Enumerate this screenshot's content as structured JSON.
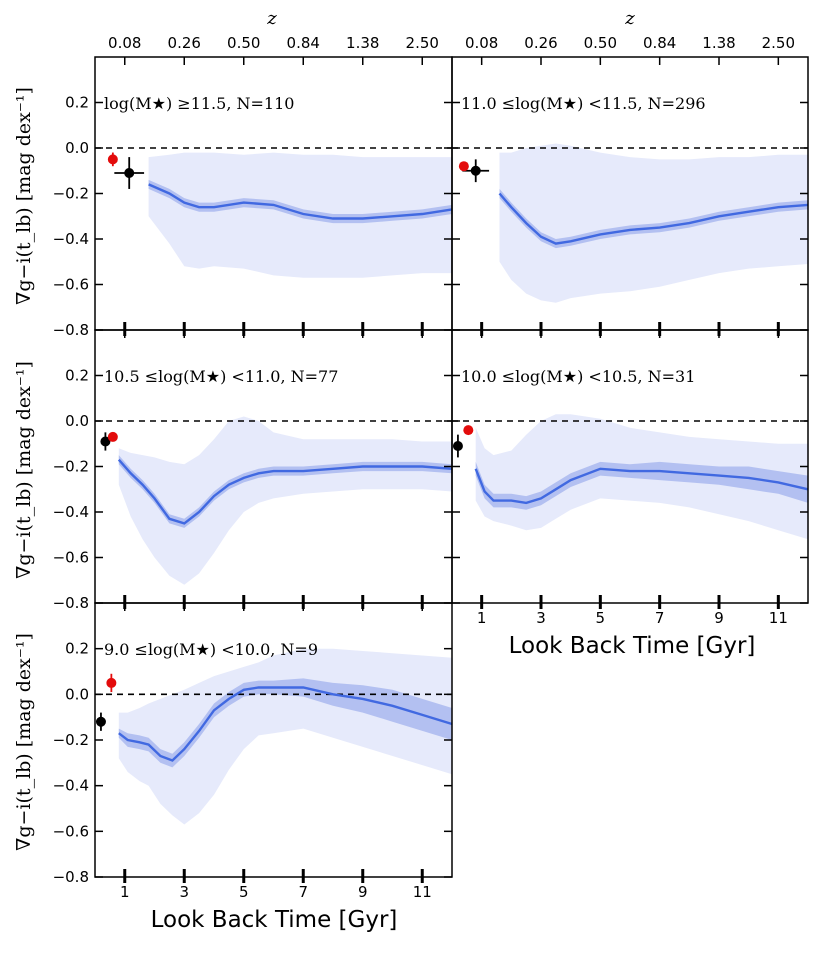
{
  "chart_data": {
    "type": "line",
    "title": "",
    "top_axis_label": "z",
    "top_tick_labels": [
      "0.08",
      "0.26",
      "0.50",
      "0.84",
      "1.38",
      "2.50"
    ],
    "top_tick_at_gyr": [
      1.0,
      3.0,
      5.0,
      7.0,
      9.0,
      11.0
    ],
    "xlabel": "Look Back Time [Gyr]",
    "ylabel": "∇g−i(t_lb) [mag dex⁻¹]",
    "x_ticks": [
      1,
      3,
      5,
      7,
      9,
      11
    ],
    "y_ticks": [
      0.2,
      0.0,
      -0.2,
      -0.4,
      -0.6,
      -0.8
    ],
    "y_tick_labels": [
      "0.2",
      "0.0",
      "−0.2",
      "−0.4",
      "−0.6",
      "−0.8"
    ],
    "xlim": [
      0,
      12
    ],
    "ylim": [
      -0.8,
      0.4
    ],
    "colors": {
      "line": "#4169e1",
      "inner_band": "#a9b8ee",
      "outer_band": "#e6eafb",
      "black_point": "#000000",
      "red_point": "#e30b0b",
      "zero_line": "#000000"
    },
    "panels": [
      {
        "label": "log(M★) ≥11.5, N=110",
        "x": [
          1.8,
          2.5,
          3.0,
          3.5,
          4.0,
          5.0,
          6.0,
          7.0,
          8.0,
          9.0,
          10.0,
          11.0,
          12.0
        ],
        "median": [
          -0.16,
          -0.2,
          -0.24,
          -0.26,
          -0.26,
          -0.24,
          -0.25,
          -0.29,
          -0.31,
          -0.31,
          -0.3,
          -0.29,
          -0.27
        ],
        "inner_low": [
          -0.18,
          -0.22,
          -0.26,
          -0.28,
          -0.28,
          -0.26,
          -0.27,
          -0.31,
          -0.33,
          -0.33,
          -0.32,
          -0.31,
          -0.29
        ],
        "inner_high": [
          -0.14,
          -0.18,
          -0.22,
          -0.24,
          -0.24,
          -0.22,
          -0.23,
          -0.27,
          -0.29,
          -0.29,
          -0.28,
          -0.27,
          -0.25
        ],
        "outer_low": [
          -0.3,
          -0.42,
          -0.52,
          -0.53,
          -0.52,
          -0.53,
          -0.56,
          -0.57,
          -0.57,
          -0.57,
          -0.56,
          -0.55,
          -0.55
        ],
        "outer_high": [
          -0.04,
          -0.03,
          -0.02,
          -0.02,
          -0.02,
          -0.03,
          -0.02,
          -0.03,
          -0.03,
          -0.04,
          -0.04,
          -0.04,
          -0.04
        ],
        "black_point": {
          "x": 1.15,
          "y": -0.11,
          "xerr": 0.5,
          "yerr": 0.07
        },
        "red_point": {
          "x": 0.6,
          "y": -0.05,
          "xerr": 0,
          "yerr": 0.03
        }
      },
      {
        "label": "11.0 ≤log(M★) <11.5, N=296",
        "x": [
          1.6,
          2.0,
          2.5,
          3.0,
          3.5,
          4.0,
          5.0,
          6.0,
          7.0,
          8.0,
          9.0,
          10.0,
          11.0,
          12.0
        ],
        "median": [
          -0.2,
          -0.26,
          -0.33,
          -0.39,
          -0.42,
          -0.41,
          -0.38,
          -0.36,
          -0.35,
          -0.33,
          -0.3,
          -0.28,
          -0.26,
          -0.25
        ],
        "inner_low": [
          -0.22,
          -0.28,
          -0.35,
          -0.41,
          -0.44,
          -0.43,
          -0.4,
          -0.38,
          -0.37,
          -0.35,
          -0.32,
          -0.3,
          -0.28,
          -0.27
        ],
        "inner_high": [
          -0.18,
          -0.24,
          -0.31,
          -0.37,
          -0.4,
          -0.39,
          -0.36,
          -0.34,
          -0.33,
          -0.31,
          -0.28,
          -0.26,
          -0.24,
          -0.23
        ],
        "outer_low": [
          -0.5,
          -0.58,
          -0.64,
          -0.67,
          -0.68,
          -0.66,
          -0.64,
          -0.63,
          -0.61,
          -0.58,
          -0.55,
          -0.53,
          -0.52,
          -0.51
        ],
        "outer_high": [
          -0.02,
          -0.02,
          0.0,
          0.01,
          0.02,
          0.01,
          -0.02,
          -0.04,
          -0.05,
          -0.05,
          -0.04,
          -0.04,
          -0.03,
          -0.03
        ],
        "black_point": {
          "x": 0.8,
          "y": -0.1,
          "xerr": 0.45,
          "yerr": 0.05
        },
        "red_point": {
          "x": 0.4,
          "y": -0.08,
          "xerr": 0,
          "yerr": 0.02
        }
      },
      {
        "label": "10.5 ≤log(M★) <11.0, N=77",
        "x": [
          0.8,
          1.2,
          1.6,
          2.0,
          2.5,
          3.0,
          3.5,
          4.0,
          4.5,
          5.0,
          5.5,
          6.0,
          7.0,
          8.0,
          9.0,
          10.0,
          11.0,
          12.0
        ],
        "median": [
          -0.17,
          -0.23,
          -0.28,
          -0.34,
          -0.43,
          -0.45,
          -0.4,
          -0.33,
          -0.28,
          -0.25,
          -0.23,
          -0.22,
          -0.22,
          -0.21,
          -0.2,
          -0.2,
          -0.2,
          -0.21
        ],
        "inner_low": [
          -0.19,
          -0.25,
          -0.3,
          -0.36,
          -0.45,
          -0.47,
          -0.42,
          -0.35,
          -0.3,
          -0.27,
          -0.25,
          -0.24,
          -0.24,
          -0.23,
          -0.22,
          -0.22,
          -0.22,
          -0.23
        ],
        "inner_high": [
          -0.15,
          -0.21,
          -0.26,
          -0.32,
          -0.41,
          -0.43,
          -0.38,
          -0.31,
          -0.26,
          -0.23,
          -0.21,
          -0.2,
          -0.2,
          -0.19,
          -0.18,
          -0.18,
          -0.18,
          -0.19
        ],
        "outer_low": [
          -0.28,
          -0.42,
          -0.52,
          -0.6,
          -0.68,
          -0.72,
          -0.67,
          -0.58,
          -0.48,
          -0.4,
          -0.36,
          -0.34,
          -0.32,
          -0.31,
          -0.3,
          -0.3,
          -0.3,
          -0.31
        ],
        "outer_high": [
          -0.12,
          -0.14,
          -0.15,
          -0.16,
          -0.18,
          -0.19,
          -0.15,
          -0.08,
          0.0,
          0.02,
          0.0,
          -0.05,
          -0.08,
          -0.08,
          -0.08,
          -0.08,
          -0.09,
          -0.09
        ],
        "black_point": {
          "x": 0.35,
          "y": -0.09,
          "xerr": 0.15,
          "yerr": 0.04
        },
        "red_point": {
          "x": 0.6,
          "y": -0.07,
          "xerr": 0,
          "yerr": 0.015
        }
      },
      {
        "label": "10.0 ≤log(M★) <10.5, N=31",
        "x": [
          0.8,
          1.1,
          1.4,
          2.0,
          2.5,
          3.0,
          3.5,
          4.0,
          5.0,
          6.0,
          7.0,
          8.0,
          9.0,
          10.0,
          11.0,
          12.0
        ],
        "median": [
          -0.21,
          -0.31,
          -0.35,
          -0.35,
          -0.36,
          -0.34,
          -0.3,
          -0.26,
          -0.21,
          -0.22,
          -0.22,
          -0.23,
          -0.24,
          -0.25,
          -0.27,
          -0.3
        ],
        "inner_low": [
          -0.24,
          -0.34,
          -0.38,
          -0.38,
          -0.39,
          -0.37,
          -0.33,
          -0.29,
          -0.24,
          -0.25,
          -0.26,
          -0.27,
          -0.28,
          -0.3,
          -0.32,
          -0.36
        ],
        "inner_high": [
          -0.18,
          -0.28,
          -0.32,
          -0.32,
          -0.33,
          -0.31,
          -0.27,
          -0.23,
          -0.18,
          -0.19,
          -0.18,
          -0.19,
          -0.2,
          -0.2,
          -0.22,
          -0.24
        ],
        "outer_low": [
          -0.35,
          -0.42,
          -0.44,
          -0.46,
          -0.48,
          -0.47,
          -0.43,
          -0.39,
          -0.34,
          -0.35,
          -0.36,
          -0.38,
          -0.41,
          -0.44,
          -0.48,
          -0.52
        ],
        "outer_high": [
          -0.03,
          -0.12,
          -0.15,
          -0.13,
          -0.06,
          0.0,
          0.03,
          0.03,
          0.01,
          -0.03,
          -0.05,
          -0.07,
          -0.08,
          -0.09,
          -0.1,
          -0.1
        ],
        "black_point": {
          "x": 0.2,
          "y": -0.11,
          "xerr": 0,
          "yerr": 0.05
        },
        "red_point": {
          "x": 0.55,
          "y": -0.04,
          "xerr": 0,
          "yerr": 0.01
        }
      },
      {
        "label": "9.0 ≤log(M★) <10.0, N=9",
        "x": [
          0.8,
          1.1,
          1.5,
          1.8,
          2.2,
          2.6,
          3.0,
          3.5,
          4.0,
          4.5,
          5.0,
          5.5,
          6.0,
          7.0,
          8.0,
          9.0,
          10.0,
          11.0,
          12.0
        ],
        "median": [
          -0.17,
          -0.2,
          -0.21,
          -0.22,
          -0.27,
          -0.29,
          -0.24,
          -0.16,
          -0.07,
          -0.02,
          0.02,
          0.03,
          0.03,
          0.03,
          0.0,
          -0.02,
          -0.05,
          -0.09,
          -0.13
        ],
        "inner_low": [
          -0.19,
          -0.23,
          -0.24,
          -0.25,
          -0.3,
          -0.32,
          -0.27,
          -0.19,
          -0.1,
          -0.05,
          -0.01,
          0.0,
          0.0,
          -0.01,
          -0.05,
          -0.08,
          -0.12,
          -0.16,
          -0.2
        ],
        "inner_high": [
          -0.15,
          -0.17,
          -0.18,
          -0.19,
          -0.24,
          -0.26,
          -0.21,
          -0.13,
          -0.04,
          0.01,
          0.05,
          0.06,
          0.06,
          0.07,
          0.05,
          0.04,
          0.02,
          -0.02,
          -0.06
        ],
        "outer_low": [
          -0.28,
          -0.34,
          -0.38,
          -0.4,
          -0.48,
          -0.53,
          -0.57,
          -0.52,
          -0.44,
          -0.33,
          -0.24,
          -0.18,
          -0.17,
          -0.15,
          -0.19,
          -0.23,
          -0.27,
          -0.31,
          -0.35
        ],
        "outer_high": [
          -0.08,
          -0.08,
          -0.06,
          -0.04,
          -0.02,
          0.0,
          0.02,
          0.05,
          0.08,
          0.1,
          0.12,
          0.14,
          0.17,
          0.2,
          0.2,
          0.19,
          0.18,
          0.17,
          0.16
        ],
        "black_point": {
          "x": 0.2,
          "y": -0.12,
          "xerr": 0,
          "yerr": 0.04
        },
        "red_point": {
          "x": 0.55,
          "y": 0.05,
          "xerr": 0,
          "yerr": 0.04
        }
      }
    ]
  }
}
